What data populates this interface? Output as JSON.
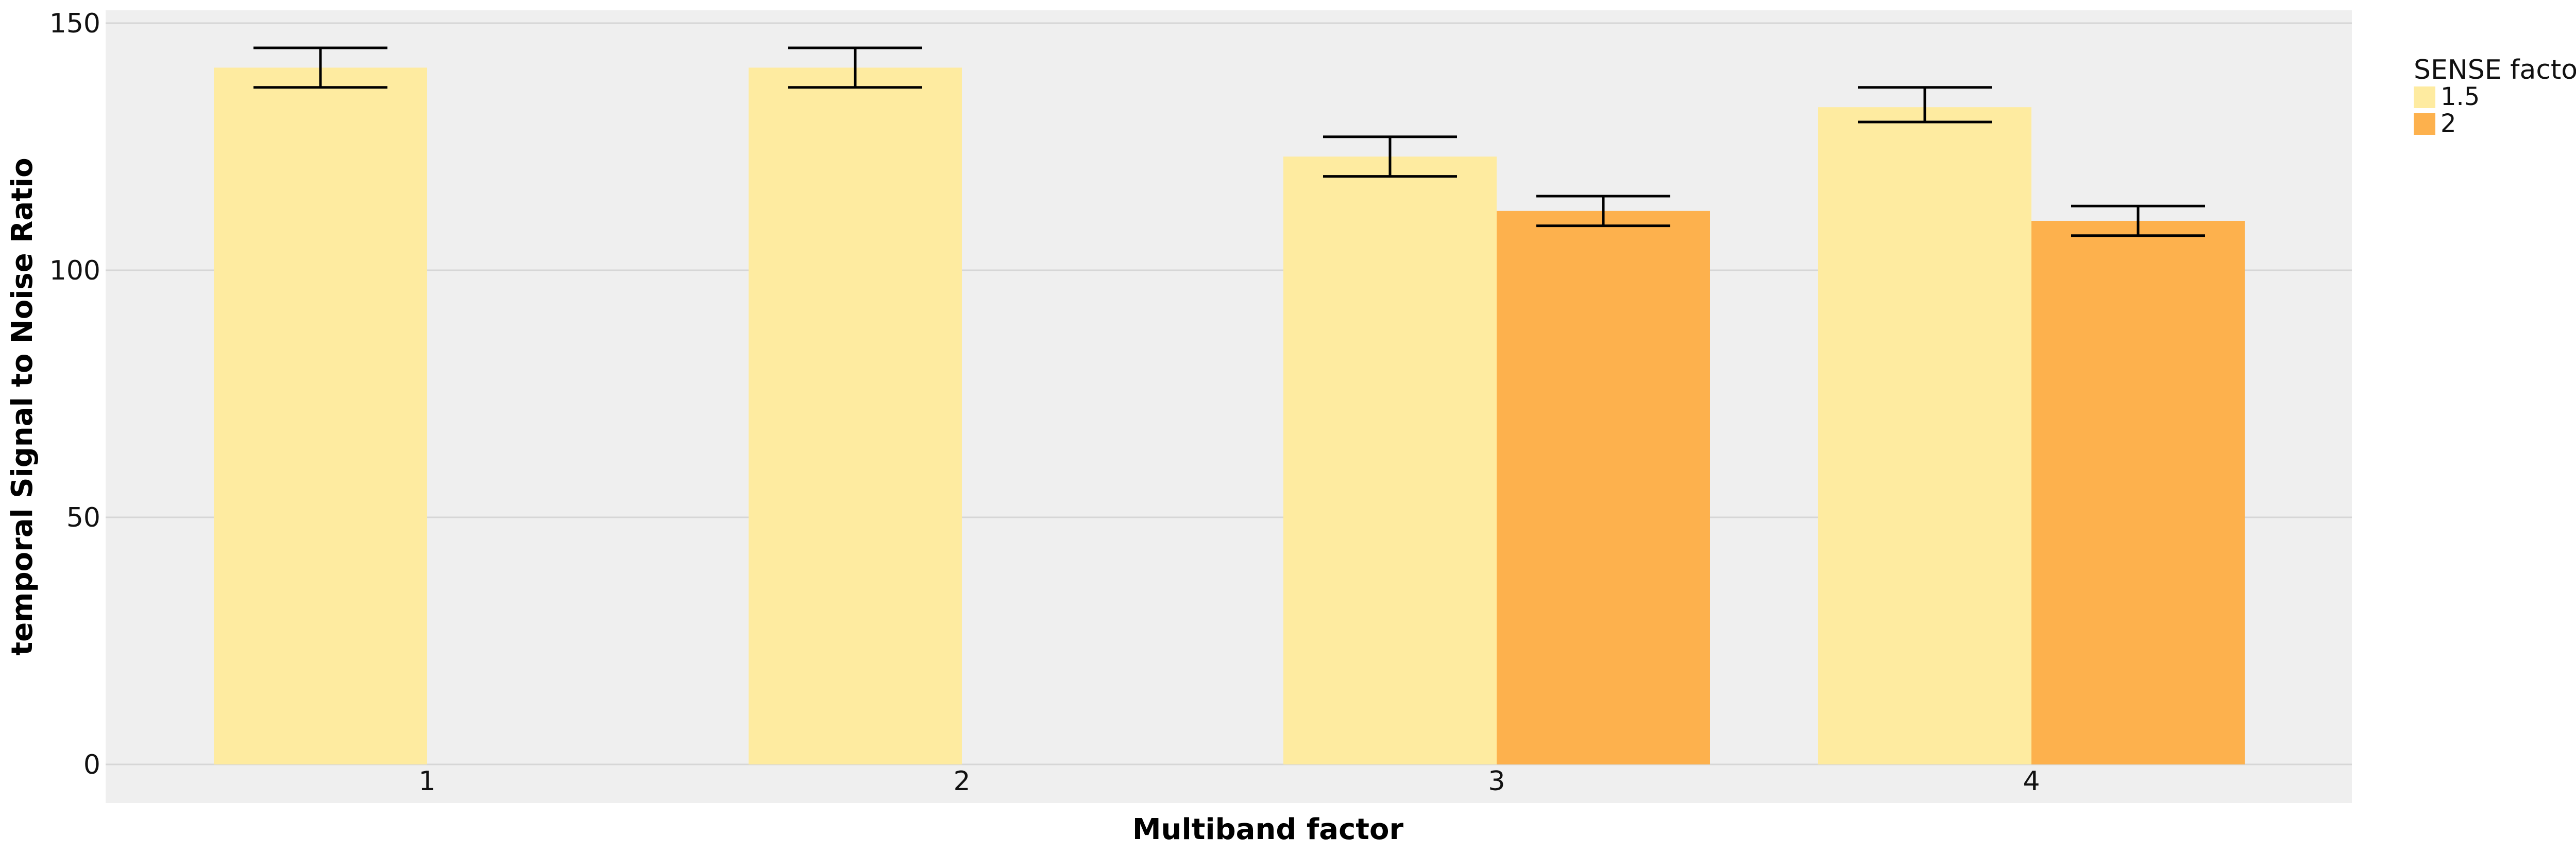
{
  "chart_data": {
    "type": "bar",
    "title": "",
    "xlabel": "Multiband factor",
    "ylabel": "temporal Signal to Noise Ratio",
    "categories": [
      "1",
      "2",
      "3",
      "4"
    ],
    "ylim": [
      0,
      150
    ],
    "yticks": [
      0,
      50,
      100,
      150
    ],
    "grid": true,
    "legend_position": "right",
    "legend_title": "SENSE factor",
    "series": [
      {
        "name": "1.5",
        "color": "#FEEBA0",
        "values": [
          141,
          141,
          123,
          133
        ],
        "error_low": [
          137,
          137,
          119,
          130
        ],
        "error_high": [
          145,
          145,
          127,
          137
        ]
      },
      {
        "name": "2",
        "color": "#FDB14D",
        "values": [
          null,
          null,
          112,
          110
        ],
        "error_low": [
          null,
          null,
          109,
          107
        ],
        "error_high": [
          null,
          null,
          115,
          113
        ]
      }
    ],
    "colors": {
      "panel_background": "#EFEFEF",
      "grid": "#D6D6D6",
      "error_bar": "#000000"
    }
  }
}
